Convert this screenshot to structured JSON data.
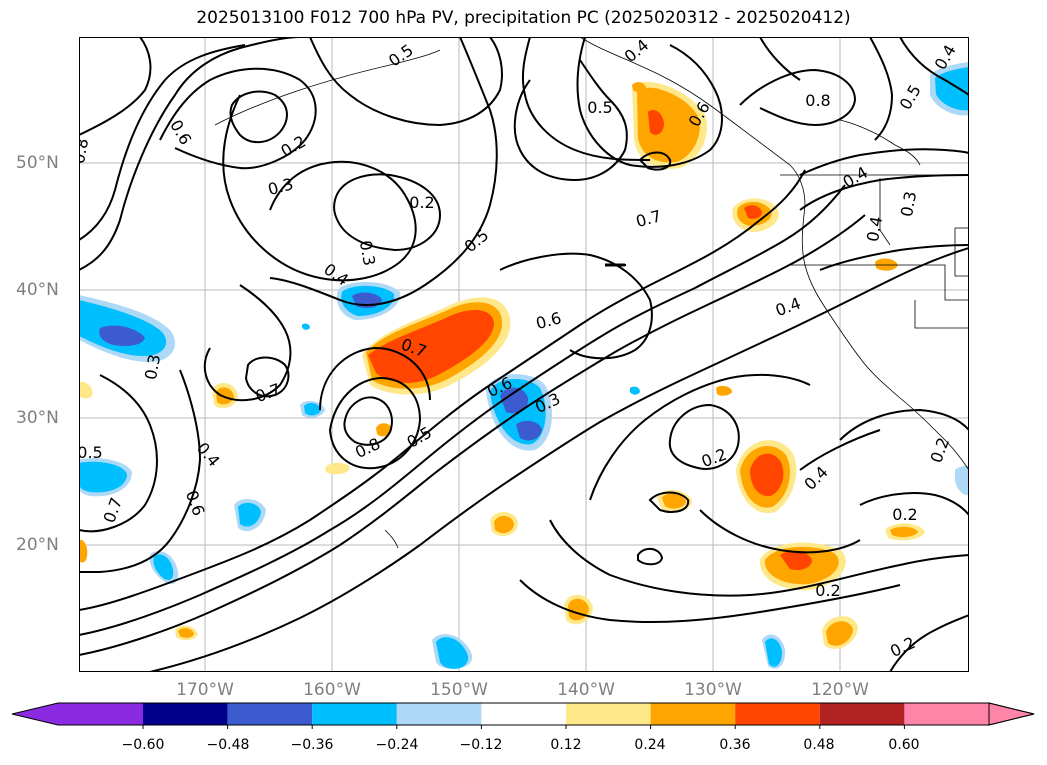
{
  "title": "2025013100 F012 700 hPa PV, precipitation PC (2025020312 - 2025020412)",
  "lat_labels": [
    "50°N",
    "40°N",
    "30°N",
    "20°N"
  ],
  "lon_labels": [
    "170°W",
    "160°W",
    "150°W",
    "140°W",
    "130°W",
    "120°W"
  ],
  "colorbar": {
    "ticks": [
      "−0.60",
      "−0.48",
      "−0.36",
      "−0.24",
      "−0.12",
      "0.12",
      "0.24",
      "0.36",
      "0.48",
      "0.60"
    ],
    "colors": [
      "#8a2be2",
      "#00008b",
      "#3b5bcf",
      "#00bfff",
      "#add8f6",
      "#ffffff",
      "#ffe88a",
      "#ffa500",
      "#ff4500",
      "#b22222",
      "#ff85a8"
    ]
  },
  "contour_labels": [
    "0.2",
    "0.3",
    "0.2",
    "0.6",
    "0.8",
    "0.3",
    "0.4",
    "0.5",
    "0.5",
    "0.6",
    "0.8",
    "0.5",
    "0.7",
    "0.7",
    "0.6",
    "0.7",
    "0.3",
    "0.4",
    "0.4",
    "0.4",
    "0.3",
    "0.6",
    "0.3",
    "0.8",
    "0.5",
    "0.2",
    "0.4",
    "0.2",
    "0.5",
    "0.4",
    "0.7",
    "0.6",
    "0.2",
    "0.2",
    "0.2",
    "0.4",
    "0.5",
    "0.4"
  ]
}
